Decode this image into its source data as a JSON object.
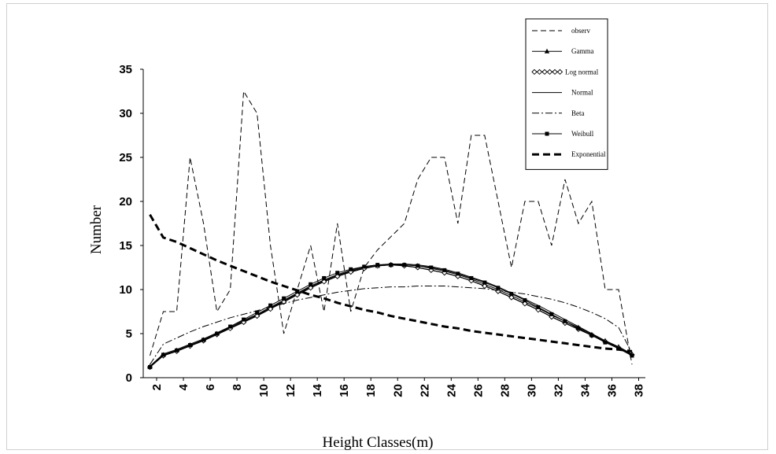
{
  "chart_data": {
    "type": "line",
    "title": "",
    "xlabel": "Height Classes(m)",
    "ylabel": "Number",
    "ylim": [
      0,
      35
    ],
    "xlim": [
      1,
      38.5
    ],
    "yticks": [
      0,
      5,
      10,
      15,
      20,
      25,
      30,
      35
    ],
    "xticks": [
      2,
      4,
      6,
      8,
      10,
      12,
      14,
      16,
      18,
      20,
      22,
      24,
      26,
      28,
      30,
      32,
      34,
      36,
      38
    ],
    "legend_position": "top-right",
    "grid": false,
    "series": [
      {
        "name": "observ",
        "style": "dashed",
        "marker": "none",
        "width": 1,
        "x": [
          1.5,
          2.5,
          3.5,
          4.5,
          5.5,
          6.5,
          7.5,
          8.5,
          9.5,
          10.5,
          11.5,
          12.5,
          13.5,
          14.5,
          15.5,
          16.5,
          17.5,
          18.5,
          19.5,
          20.5,
          21.5,
          22.5,
          23.5,
          24.5,
          25.5,
          26.5,
          27.5,
          28.5,
          29.5,
          30.5,
          31.5,
          32.5,
          33.5,
          34.5,
          35.5,
          36.5,
          37.5
        ],
        "y": [
          2.5,
          7.5,
          7.5,
          25,
          17.5,
          7.5,
          10,
          32.5,
          30,
          15,
          5,
          10,
          15,
          7.5,
          17.5,
          7.5,
          12.5,
          14.5,
          16,
          17.5,
          22.5,
          25,
          25,
          17.5,
          27.5,
          27.5,
          20,
          12.5,
          20,
          20,
          15,
          22.5,
          17.5,
          20,
          10,
          10,
          1.5
        ]
      },
      {
        "name": "Gamma",
        "style": "solid",
        "marker": "triangle",
        "width": 1,
        "x": [
          1.5,
          2.5,
          3.5,
          4.5,
          5.5,
          6.5,
          7.5,
          8.5,
          9.5,
          10.5,
          11.5,
          12.5,
          13.5,
          14.5,
          15.5,
          16.5,
          17.5,
          18.5,
          19.5,
          20.5,
          21.5,
          22.5,
          23.5,
          24.5,
          25.5,
          26.5,
          27.5,
          28.5,
          29.5,
          30.5,
          31.5,
          32.5,
          33.5,
          34.5,
          35.5,
          36.5,
          37.5
        ],
        "y": [
          1.2,
          2.6,
          3.1,
          3.7,
          4.3,
          5.0,
          5.7,
          6.4,
          7.1,
          7.9,
          8.7,
          9.5,
          10.3,
          11.0,
          11.6,
          12.1,
          12.5,
          12.7,
          12.8,
          12.8,
          12.7,
          12.4,
          12.1,
          11.7,
          11.2,
          10.6,
          10.0,
          9.3,
          8.6,
          7.9,
          7.1,
          6.4,
          5.7,
          4.9,
          4.2,
          3.5,
          2.7
        ]
      },
      {
        "name": "Log normal",
        "style": "solid",
        "marker": "diamond",
        "width": 1.3,
        "x": [
          1.5,
          2.5,
          3.5,
          4.5,
          5.5,
          6.5,
          7.5,
          8.5,
          9.5,
          10.5,
          11.5,
          12.5,
          13.5,
          14.5,
          15.5,
          16.5,
          17.5,
          18.5,
          19.5,
          20.5,
          21.5,
          22.5,
          23.5,
          24.5,
          25.5,
          26.5,
          27.5,
          28.5,
          29.5,
          30.5,
          31.5,
          32.5,
          33.5,
          34.5,
          35.5,
          36.5,
          37.5
        ],
        "y": [
          1.2,
          2.5,
          3.0,
          3.6,
          4.2,
          4.9,
          5.6,
          6.3,
          7.0,
          7.8,
          8.6,
          9.4,
          10.2,
          10.9,
          11.5,
          12.0,
          12.4,
          12.7,
          12.8,
          12.7,
          12.5,
          12.2,
          11.9,
          11.5,
          11.0,
          10.4,
          9.8,
          9.1,
          8.4,
          7.7,
          6.9,
          6.2,
          5.5,
          4.8,
          4.1,
          3.4,
          2.6
        ]
      },
      {
        "name": "Normal",
        "style": "solid",
        "marker": "none",
        "width": 1,
        "x": [
          1.5,
          2.5,
          3.5,
          4.5,
          5.5,
          6.5,
          7.5,
          8.5,
          9.5,
          10.5,
          11.5,
          12.5,
          13.5,
          14.5,
          15.5,
          16.5,
          17.5,
          18.5,
          19.5,
          20.5,
          21.5,
          22.5,
          23.5,
          24.5,
          25.5,
          26.5,
          27.5,
          28.5,
          29.5,
          30.5,
          31.5,
          32.5,
          33.5,
          34.5,
          35.5,
          36.5,
          37.5
        ],
        "y": [
          1.3,
          2.7,
          3.2,
          3.8,
          4.4,
          5.1,
          5.8,
          6.5,
          7.2,
          8.0,
          8.8,
          9.6,
          10.4,
          11.1,
          11.7,
          12.2,
          12.6,
          12.8,
          12.9,
          12.9,
          12.8,
          12.6,
          12.3,
          11.9,
          11.4,
          10.9,
          10.3,
          9.6,
          8.9,
          8.2,
          7.4,
          6.6,
          5.8,
          5.0,
          4.2,
          3.5,
          2.7
        ]
      },
      {
        "name": "Beta",
        "style": "dashdot",
        "marker": "none",
        "width": 1,
        "x": [
          1.5,
          2.5,
          3.5,
          4.5,
          5.5,
          6.5,
          7.5,
          8.5,
          9.5,
          10.5,
          11.5,
          12.5,
          13.5,
          14.5,
          15.5,
          16.5,
          17.5,
          18.5,
          19.5,
          20.5,
          21.5,
          22.5,
          23.5,
          24.5,
          25.5,
          26.5,
          27.5,
          28.5,
          29.5,
          30.5,
          31.5,
          32.5,
          33.5,
          34.5,
          35.5,
          36.5,
          37.5
        ],
        "y": [
          1.5,
          3.8,
          4.5,
          5.2,
          5.8,
          6.3,
          6.8,
          7.2,
          7.6,
          8.0,
          8.4,
          8.8,
          9.1,
          9.4,
          9.7,
          9.9,
          10.1,
          10.2,
          10.3,
          10.3,
          10.4,
          10.4,
          10.4,
          10.3,
          10.2,
          10.1,
          9.9,
          9.7,
          9.5,
          9.2,
          8.9,
          8.5,
          8.0,
          7.4,
          6.7,
          5.7,
          2.8
        ]
      },
      {
        "name": "Weibull",
        "style": "solid",
        "marker": "square",
        "width": 1,
        "x": [
          1.5,
          2.5,
          3.5,
          4.5,
          5.5,
          6.5,
          7.5,
          8.5,
          9.5,
          10.5,
          11.5,
          12.5,
          13.5,
          14.5,
          15.5,
          16.5,
          17.5,
          18.5,
          19.5,
          20.5,
          21.5,
          22.5,
          23.5,
          24.5,
          25.5,
          26.5,
          27.5,
          28.5,
          29.5,
          30.5,
          31.5,
          32.5,
          33.5,
          34.5,
          35.5,
          36.5,
          37.5
        ],
        "y": [
          1.2,
          2.6,
          3.1,
          3.7,
          4.3,
          5.0,
          5.8,
          6.6,
          7.4,
          8.2,
          9.0,
          9.8,
          10.6,
          11.3,
          11.9,
          12.3,
          12.6,
          12.8,
          12.8,
          12.8,
          12.7,
          12.5,
          12.2,
          11.8,
          11.3,
          10.8,
          10.2,
          9.5,
          8.8,
          8.0,
          7.2,
          6.4,
          5.6,
          4.8,
          4.0,
          3.3,
          2.5
        ]
      },
      {
        "name": "Exponential",
        "style": "dashed-bold",
        "marker": "none",
        "width": 3,
        "x": [
          1.5,
          2.5,
          3.5,
          4.5,
          5.5,
          6.5,
          7.5,
          8.5,
          9.5,
          10.5,
          11.5,
          12.5,
          13.5,
          14.5,
          15.5,
          16.5,
          17.5,
          18.5,
          19.5,
          20.5,
          21.5,
          22.5,
          23.5,
          24.5,
          25.5,
          26.5,
          27.5,
          28.5,
          29.5,
          30.5,
          31.5,
          32.5,
          33.5,
          34.5,
          35.5,
          36.5,
          37.5
        ],
        "y": [
          18.5,
          15.9,
          15.4,
          14.7,
          14.0,
          13.3,
          12.7,
          12.1,
          11.5,
          10.9,
          10.4,
          9.9,
          9.4,
          9.0,
          8.5,
          8.1,
          7.7,
          7.4,
          7.0,
          6.7,
          6.4,
          6.1,
          5.8,
          5.6,
          5.3,
          5.1,
          4.9,
          4.7,
          4.5,
          4.3,
          4.1,
          3.9,
          3.7,
          3.5,
          3.3,
          3.2,
          3.0
        ]
      }
    ]
  }
}
